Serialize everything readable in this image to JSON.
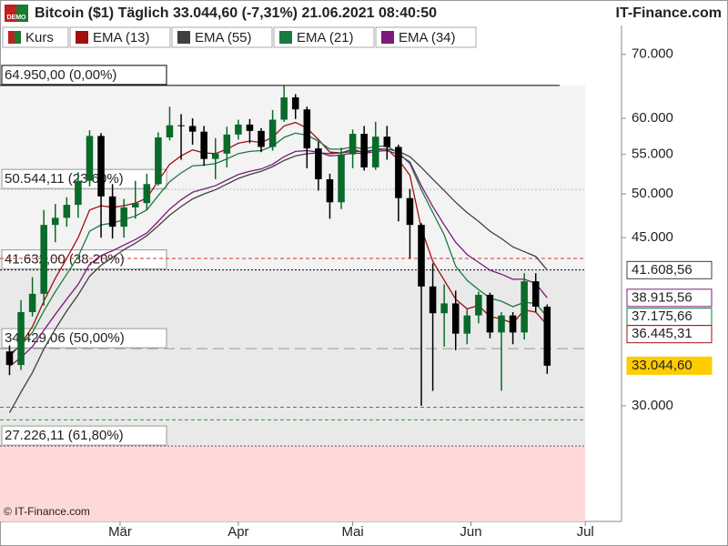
{
  "chart_data": {
    "type": "candlestick",
    "title": "Bitcoin ($1) Täglich 33.044,60 (-7,31%) 21.06.2021 08:40:50",
    "brand": "IT-Finance.com",
    "badge": "DEMO",
    "copyright": "© IT-Finance.com",
    "log_scale": true,
    "xlim": [
      -2.5,
      160.5
    ],
    "xticks": [
      {
        "value": 29,
        "label": "Mär"
      },
      {
        "value": 60,
        "label": "Apr"
      },
      {
        "value": 90,
        "label": "Mai"
      },
      {
        "value": 121,
        "label": "Jun"
      },
      {
        "value": 151,
        "label": "Jul"
      }
    ],
    "ylim": [
      22700,
      75050
    ],
    "yticks": [
      {
        "value": 70000,
        "label": "70.000"
      },
      {
        "value": 60000,
        "label": "60.000"
      },
      {
        "value": 55000,
        "label": "55.000"
      },
      {
        "value": 50000,
        "label": "50.000"
      },
      {
        "value": 45000,
        "label": "45.000"
      },
      {
        "value": 30000,
        "label": "30.000"
      }
    ],
    "x": [
      0,
      3,
      6,
      9,
      12,
      15,
      18,
      21,
      24,
      27,
      30,
      33,
      36,
      39,
      42,
      45,
      48,
      51,
      54,
      57,
      60,
      63,
      66,
      69,
      72,
      75,
      78,
      81,
      84,
      87,
      90,
      93,
      96,
      99,
      102,
      105,
      108,
      111,
      114,
      117,
      120,
      123,
      126,
      129,
      132,
      135,
      138,
      141
    ],
    "series": [
      {
        "name": "Kurs",
        "kind": "candle",
        "up_color": "#0a6a2a",
        "down_color": "#000000",
        "label_color": "#ffcc00",
        "last_label": "33.044,60",
        "open": [
          34200,
          33100,
          37600,
          39300,
          46400,
          47200,
          48700,
          51600,
          57500,
          49700,
          46200,
          48400,
          48900,
          51200,
          57300,
          59000,
          58900,
          58100,
          54400,
          55100,
          57700,
          59100,
          58200,
          56000,
          59800,
          63100,
          61300,
          55800,
          51800,
          49000,
          55000,
          57800,
          53300,
          57400,
          56000,
          49500,
          46400,
          40000,
          37500,
          38400,
          35700,
          37300,
          39200,
          35800,
          37300,
          35800,
          40500,
          38100
        ],
        "high": [
          34700,
          38700,
          40900,
          48100,
          48800,
          49600,
          52700,
          58300,
          57900,
          51200,
          49400,
          51600,
          52500,
          58000,
          61700,
          60600,
          60000,
          58900,
          57200,
          58800,
          59800,
          59900,
          58600,
          61200,
          64900,
          63600,
          61700,
          56700,
          52500,
          55900,
          58400,
          58900,
          59500,
          58900,
          56300,
          50600,
          46600,
          42300,
          40200,
          39600,
          37900,
          39500,
          39400,
          37600,
          37600,
          41300,
          41300,
          38300
        ],
        "low": [
          32300,
          32700,
          37200,
          38200,
          44500,
          46200,
          47200,
          50900,
          45000,
          44900,
          45000,
          47100,
          48100,
          51000,
          56900,
          54300,
          56300,
          53500,
          51800,
          53300,
          57000,
          56500,
          55300,
          55500,
          59500,
          59900,
          53200,
          50400,
          47100,
          48200,
          53200,
          52900,
          53000,
          54300,
          46800,
          42800,
          30000,
          31100,
          34600,
          34300,
          34800,
          36600,
          35300,
          31100,
          34800,
          35200,
          37600,
          32400
        ],
        "close": [
          33100,
          37600,
          39300,
          46400,
          47200,
          48700,
          51600,
          57500,
          49700,
          46200,
          48400,
          48900,
          51200,
          57300,
          59000,
          58900,
          58100,
          54400,
          55100,
          57700,
          59100,
          58200,
          56000,
          59800,
          63100,
          61300,
          55800,
          51800,
          49000,
          55000,
          57800,
          53300,
          57400,
          56000,
          49500,
          46400,
          40000,
          37500,
          38400,
          35700,
          37300,
          39200,
          35800,
          37300,
          35800,
          40500,
          38100,
          33044.6
        ]
      },
      {
        "name": "EMA (13)",
        "kind": "line",
        "color": "#a01010",
        "last_label": "36.445,31",
        "values": [
          33800,
          34800,
          36300,
          38600,
          40800,
          42800,
          45000,
          48100,
          48600,
          48400,
          48600,
          48900,
          49500,
          51600,
          53700,
          54800,
          55600,
          55200,
          55100,
          55700,
          56500,
          56800,
          56600,
          57300,
          58900,
          59400,
          58600,
          57000,
          55300,
          55200,
          55700,
          55200,
          55700,
          55700,
          54300,
          52300,
          46000,
          42500,
          40600,
          38800,
          37900,
          38200,
          37200,
          37000,
          36600,
          37800,
          37600,
          36445.31
        ]
      },
      {
        "name": "EMA (55)",
        "kind": "line",
        "color": "#404040",
        "last_label": "41.608,56",
        "values": [
          29500,
          31000,
          32500,
          34400,
          36100,
          37700,
          39200,
          41000,
          42100,
          42900,
          43700,
          44400,
          45200,
          46300,
          47500,
          48500,
          49400,
          50000,
          50500,
          51200,
          51900,
          52400,
          52800,
          53400,
          54200,
          54800,
          55100,
          55200,
          55100,
          55200,
          55400,
          55400,
          55600,
          55700,
          55400,
          54700,
          53300,
          51800,
          50400,
          49000,
          47800,
          46800,
          45700,
          44900,
          44000,
          43500,
          43000,
          41608.56
        ]
      },
      {
        "name": "EMA (21)",
        "kind": "line",
        "color": "#1a7a40",
        "last_label": "37.175,66",
        "values": [
          34000,
          34700,
          35800,
          37700,
          39500,
          41200,
          43000,
          45700,
          46400,
          46600,
          47000,
          47400,
          48100,
          49800,
          51500,
          52600,
          53500,
          53600,
          53800,
          54400,
          55100,
          55400,
          55500,
          56100,
          57300,
          57900,
          57600,
          56800,
          55700,
          55700,
          56000,
          55700,
          56100,
          56100,
          55200,
          53800,
          50500,
          47800,
          45300,
          42000,
          40600,
          39700,
          38900,
          38600,
          38100,
          38500,
          38400,
          37175.66
        ]
      },
      {
        "name": "EMA (34)",
        "kind": "line",
        "color": "#7a1a7a",
        "last_label": "38.915,56",
        "values": [
          33000,
          33700,
          34600,
          36000,
          37400,
          38800,
          40200,
          42200,
          43100,
          43600,
          44200,
          44800,
          45500,
          46800,
          48200,
          49300,
          50200,
          50600,
          51000,
          51700,
          52400,
          52800,
          53100,
          53700,
          54700,
          55400,
          55500,
          55300,
          54800,
          54900,
          55200,
          55100,
          55400,
          55500,
          55000,
          54000,
          51000,
          48500,
          46400,
          44500,
          43200,
          42400,
          41600,
          41200,
          40700,
          40700,
          40300,
          38915.56
        ]
      }
    ],
    "fib_levels": [
      {
        "value": 64950,
        "label": "64.950,00 (0,00%)",
        "color": "#000000",
        "dash": "solid"
      },
      {
        "value": 50544.11,
        "label": "50.544,11 (23,60%)",
        "color": "#bbbbbb",
        "dash": "dotted"
      },
      {
        "value": 41632,
        "label": "41.632,00 (38,20%)",
        "color": "#000000",
        "dash": "dotted"
      },
      {
        "value": 34429.06,
        "label": "34.429,06 (50,00%)",
        "color": "#999999",
        "dash": "dashed"
      },
      {
        "value": 27226.11,
        "label": "27.226,11 (61,80%)",
        "color": "#555555",
        "dash": "dotted"
      }
    ],
    "fib_zone_colors": [
      "#f3f3f3",
      "#e9e9e9",
      "#ffd9d9"
    ],
    "hlines": [
      {
        "value": 42800,
        "color": "#e03030",
        "dash": "dashed"
      },
      {
        "value": 29900,
        "color": "#2a9a2a",
        "dash": "dashed"
      },
      {
        "value": 29000,
        "color": "#2a9a2a",
        "dash": "dashed"
      }
    ]
  }
}
